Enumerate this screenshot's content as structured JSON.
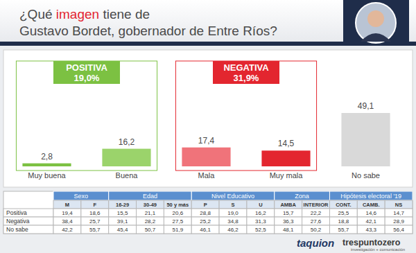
{
  "header": {
    "title_line1": [
      "¿Qué ",
      "imagen",
      " tiene de"
    ],
    "title_line2": "Gustavo Bordet, gobernador de Entre Ríos?"
  },
  "chart_data": {
    "type": "bar",
    "categories": [
      "Muy buena",
      "Buena",
      "Mala",
      "Muy mala",
      "No sabe"
    ],
    "values": [
      2.8,
      16.2,
      17.4,
      14.5,
      49.1
    ],
    "value_labels": [
      "2,8",
      "16,2",
      "17,4",
      "14,5",
      "49,1"
    ],
    "colors": [
      "#7cc142",
      "#9bd36b",
      "#f0737a",
      "#e3262f",
      "#d9d9d9"
    ],
    "data_labels": true,
    "tick_labels": "x",
    "grid": false
  },
  "summary": [
    {
      "label": "POSITIVA",
      "value": "19,0%"
    },
    {
      "label": "NEGATIVA",
      "value": "31,9%"
    }
  ],
  "table": {
    "groups": [
      {
        "label": "Sexo",
        "columns": [
          "M",
          "F"
        ]
      },
      {
        "label": "Edad",
        "columns": [
          "16-29",
          "30-49",
          "50 y más"
        ]
      },
      {
        "label": "Nivel Educativo",
        "columns": [
          "P",
          "S",
          "U"
        ]
      },
      {
        "label": "Zona",
        "columns": [
          "AMBA",
          "INTERIOR"
        ]
      },
      {
        "label": "Hipótesis electoral '19",
        "columns": [
          "CONT.",
          "CAMB.",
          "NS"
        ]
      }
    ],
    "rows": [
      {
        "label": "Positiva",
        "cells": [
          "19,4",
          "18,6",
          "15,5",
          "21,1",
          "20,6",
          "28,8",
          "19,0",
          "16,2",
          "15,7",
          "22,2",
          "25,5",
          "14,6",
          "14,7"
        ]
      },
      {
        "label": "Negativa",
        "cells": [
          "38,4",
          "25,7",
          "39,1",
          "28,2",
          "27,5",
          "25,2",
          "34,8",
          "31,3",
          "36,3",
          "27,6",
          "18,8",
          "42,1",
          "28,9"
        ]
      },
      {
        "label": "No sabe",
        "cells": [
          "42,2",
          "55,7",
          "45,4",
          "50,7",
          "51,9",
          "46,1",
          "46,2",
          "52,5",
          "48,1",
          "50,2",
          "55,7",
          "43,3",
          "56,4"
        ]
      }
    ]
  },
  "logos": {
    "first": "taquion",
    "second": "trespuntozero",
    "second_tagline": "investigación + comunicación"
  }
}
